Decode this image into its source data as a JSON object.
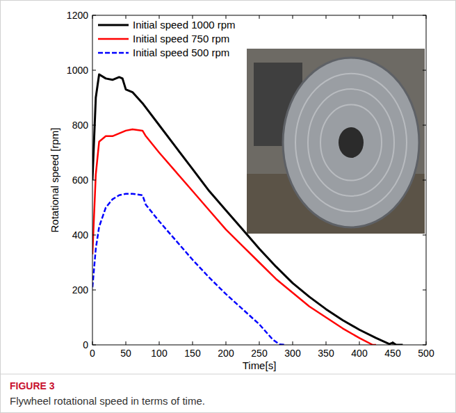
{
  "chart_data": {
    "type": "line",
    "figure_label": "FIGURE 3",
    "caption": "Flywheel rotational speed in terms of time.",
    "x_label": "Time[s]",
    "y_label": "Rotational speed [rpm]",
    "xlim": [
      0,
      500
    ],
    "xticks": [
      0,
      50,
      100,
      150,
      200,
      250,
      300,
      350,
      400,
      450,
      500
    ],
    "ylim": [
      0,
      1200
    ],
    "yticks": [
      0,
      200,
      400,
      600,
      800,
      1000,
      1200
    ],
    "grid": false,
    "legend": "upper left",
    "series": [
      {
        "name": "Initial speed 1000 rpm",
        "color": "#000000",
        "line_style": "solid",
        "x": [
          0,
          5,
          10,
          20,
          30,
          40,
          45,
          50,
          60,
          75,
          100,
          125,
          150,
          175,
          200,
          225,
          250,
          275,
          300,
          325,
          350,
          375,
          400,
          425,
          445,
          450,
          455,
          465
        ],
        "values": [
          600,
          900,
          985,
          970,
          965,
          975,
          970,
          930,
          920,
          880,
          800,
          720,
          640,
          560,
          490,
          420,
          350,
          285,
          225,
          175,
          130,
          90,
          55,
          25,
          3,
          8,
          0,
          0
        ]
      },
      {
        "name": "Initial speed 750 rpm",
        "color": "#ff0000",
        "line_style": "solid",
        "x": [
          0,
          5,
          10,
          20,
          30,
          40,
          50,
          60,
          75,
          80,
          100,
          125,
          150,
          175,
          200,
          225,
          250,
          275,
          300,
          325,
          350,
          375,
          400,
          420,
          425
        ],
        "values": [
          330,
          620,
          740,
          760,
          760,
          770,
          780,
          785,
          780,
          760,
          700,
          630,
          560,
          490,
          420,
          360,
          300,
          240,
          190,
          140,
          100,
          60,
          25,
          0,
          0
        ]
      },
      {
        "name": "Initial speed 500 rpm",
        "color": "#0000ff",
        "line_style": "dashed",
        "x": [
          0,
          5,
          10,
          20,
          30,
          40,
          50,
          60,
          75,
          80,
          100,
          125,
          150,
          175,
          200,
          225,
          250,
          270,
          280,
          290
        ],
        "values": [
          210,
          350,
          430,
          500,
          530,
          545,
          550,
          550,
          545,
          510,
          450,
          380,
          310,
          245,
          185,
          130,
          75,
          20,
          2,
          0
        ]
      }
    ]
  }
}
